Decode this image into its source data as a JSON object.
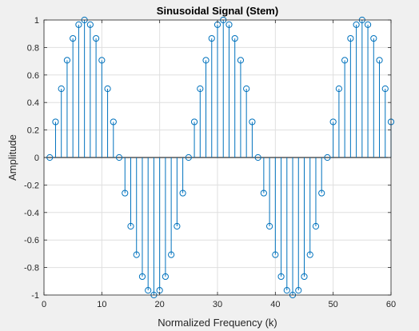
{
  "chart_data": {
    "type": "stem",
    "title": "Sinusoidal Signal (Stem)",
    "xlabel": "Normalized Frequency (k)",
    "ylabel": "Amplitude",
    "xlim": [
      0,
      60
    ],
    "ylim": [
      -1,
      1
    ],
    "xticks": [
      0,
      10,
      20,
      30,
      40,
      50,
      60
    ],
    "xtick_labels": [
      "0",
      "10",
      "20",
      "30",
      "40",
      "50",
      "60"
    ],
    "yticks": [
      -1,
      -0.8,
      -0.6,
      -0.4,
      -0.2,
      0,
      0.2,
      0.4,
      0.6,
      0.8,
      1
    ],
    "ytick_labels": [
      "-1",
      "-0.8",
      "-0.6",
      "-0.4",
      "-0.2",
      "0",
      "0.2",
      "0.4",
      "0.6",
      "0.8",
      "1"
    ],
    "grid": true,
    "x": [
      1,
      2,
      3,
      4,
      5,
      6,
      7,
      8,
      9,
      10,
      11,
      12,
      13,
      14,
      15,
      16,
      17,
      18,
      19,
      20,
      21,
      22,
      23,
      24,
      25,
      26,
      27,
      28,
      29,
      30,
      31,
      32,
      33,
      34,
      35,
      36,
      37,
      38,
      39,
      40,
      41,
      42,
      43,
      44,
      45,
      46,
      47,
      48,
      49,
      50,
      51,
      52,
      53,
      54,
      55,
      56,
      57,
      58,
      59,
      60
    ],
    "values": [
      0,
      0.259,
      0.5,
      0.707,
      0.866,
      0.966,
      1,
      0.966,
      0.866,
      0.707,
      0.5,
      0.259,
      0,
      -0.259,
      -0.5,
      -0.707,
      -0.866,
      -0.966,
      -1,
      -0.966,
      -0.866,
      -0.707,
      -0.5,
      -0.259,
      0,
      0.259,
      0.5,
      0.707,
      0.866,
      0.966,
      1,
      0.966,
      0.866,
      0.707,
      0.5,
      0.259,
      0,
      -0.259,
      -0.5,
      -0.707,
      -0.866,
      -0.966,
      -1,
      -0.966,
      -0.866,
      -0.707,
      -0.5,
      -0.259,
      0,
      0.259,
      0.5,
      0.707,
      0.866,
      0.966,
      1,
      0.966,
      0.866,
      0.707,
      0.5,
      0.259
    ],
    "color": "#0072bd",
    "marker": "circle-open"
  }
}
